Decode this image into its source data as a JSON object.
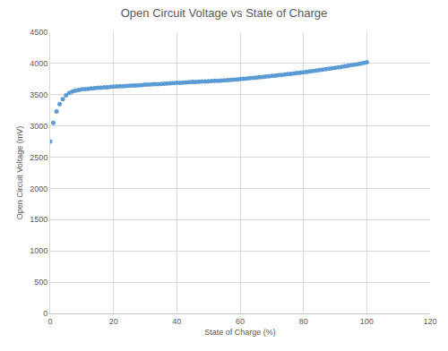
{
  "chart_data": {
    "type": "scatter",
    "title": "Open Circuit Voltage vs State of Charge",
    "x_label": "State of Charge (%)",
    "y_label": "Open Circuit Voltage (mV)",
    "x": [
      0,
      1,
      2,
      3,
      4,
      5,
      6,
      7,
      8,
      9,
      10,
      11,
      12,
      13,
      14,
      15,
      16,
      17,
      18,
      19,
      20,
      21,
      22,
      23,
      24,
      25,
      26,
      27,
      28,
      29,
      30,
      31,
      32,
      33,
      34,
      35,
      36,
      37,
      38,
      39,
      40,
      41,
      42,
      43,
      44,
      45,
      46,
      47,
      48,
      49,
      50,
      51,
      52,
      53,
      54,
      55,
      56,
      57,
      58,
      59,
      60,
      61,
      62,
      63,
      64,
      65,
      66,
      67,
      68,
      69,
      70,
      71,
      72,
      73,
      74,
      75,
      76,
      77,
      78,
      79,
      80,
      81,
      82,
      83,
      84,
      85,
      86,
      87,
      88,
      89,
      90,
      91,
      92,
      93,
      94,
      95,
      96,
      97,
      98,
      99,
      100
    ],
    "values": [
      2750,
      3050,
      3230,
      3350,
      3430,
      3490,
      3530,
      3550,
      3565,
      3575,
      3585,
      3590,
      3595,
      3600,
      3605,
      3610,
      3613,
      3617,
      3620,
      3625,
      3630,
      3632,
      3635,
      3637,
      3640,
      3643,
      3646,
      3648,
      3651,
      3655,
      3660,
      3662,
      3665,
      3667,
      3670,
      3673,
      3676,
      3679,
      3682,
      3686,
      3690,
      3692,
      3695,
      3697,
      3700,
      3703,
      3705,
      3708,
      3710,
      3712,
      3715,
      3718,
      3721,
      3724,
      3727,
      3730,
      3734,
      3738,
      3741,
      3745,
      3750,
      3754,
      3759,
      3764,
      3769,
      3774,
      3779,
      3784,
      3789,
      3794,
      3800,
      3805,
      3811,
      3817,
      3823,
      3829,
      3835,
      3841,
      3847,
      3853,
      3860,
      3866,
      3873,
      3880,
      3887,
      3894,
      3901,
      3908,
      3915,
      3922,
      3930,
      3938,
      3946,
      3955,
      3963,
      3972,
      3980,
      3989,
      3998,
      4008,
      4020
    ],
    "color": "#5b9bd5",
    "marker": "circle",
    "xlim": [
      0,
      120
    ],
    "xticks": [
      0,
      20,
      40,
      60,
      80,
      100,
      120
    ],
    "ylim": [
      0,
      4500
    ],
    "yticks": [
      0,
      500,
      1000,
      1500,
      2000,
      2500,
      3000,
      3500,
      4000,
      4500
    ],
    "grid": true
  }
}
